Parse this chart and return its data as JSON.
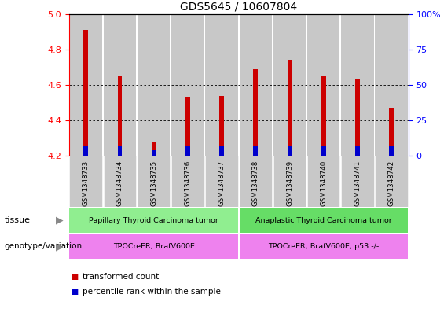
{
  "title": "GDS5645 / 10607804",
  "samples": [
    "GSM1348733",
    "GSM1348734",
    "GSM1348735",
    "GSM1348736",
    "GSM1348737",
    "GSM1348738",
    "GSM1348739",
    "GSM1348740",
    "GSM1348741",
    "GSM1348742"
  ],
  "transformed_count": [
    4.91,
    4.65,
    4.28,
    4.53,
    4.54,
    4.69,
    4.74,
    4.65,
    4.63,
    4.47
  ],
  "percentile_rank": [
    7,
    7,
    4,
    7,
    7,
    7,
    7,
    7,
    7,
    7
  ],
  "ylim_left": [
    4.2,
    5.0
  ],
  "ylim_right": [
    0,
    100
  ],
  "yticks_left": [
    4.2,
    4.4,
    4.6,
    4.8,
    5.0
  ],
  "yticks_right": [
    0,
    25,
    50,
    75,
    100
  ],
  "ytick_labels_right": [
    "0",
    "25",
    "50",
    "75",
    "100%"
  ],
  "bar_bottom": 4.2,
  "percentile_scale": 0.8,
  "tissue_labels": [
    "Papillary Thyroid Carcinoma tumor",
    "Anaplastic Thyroid Carcinoma tumor"
  ],
  "tissue_color_left": "#90EE90",
  "tissue_color_right": "#66DD66",
  "tissue_split": 5,
  "genotype_labels": [
    "TPOCreER; BrafV600E",
    "TPOCreER; BrafV600E; p53 -/-"
  ],
  "genotype_color": "#EE82EE",
  "genotype_split": 5,
  "red_color": "#CC0000",
  "blue_color": "#0000CC",
  "bg_color": "#C8C8C8",
  "legend_red": "transformed count",
  "legend_blue": "percentile rank within the sample",
  "left_label_tissue": "tissue",
  "left_label_geno": "genotype/variation"
}
